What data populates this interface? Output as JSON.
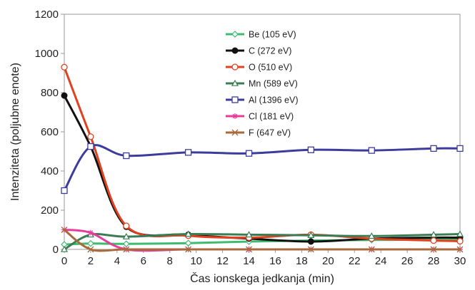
{
  "chart_data": {
    "type": "line",
    "xlabel": "Čas ionskega jedkanja  (min)",
    "ylabel": "Intenziteta  (poljubne  enote)",
    "xlim": [
      0,
      30
    ],
    "ylim": [
      0,
      1200
    ],
    "xticks": [
      "0",
      "2",
      "4",
      "6",
      "8",
      "10",
      "12",
      "14",
      "16",
      "18",
      "20",
      "22",
      "24",
      "26",
      "28",
      "30"
    ],
    "yticks": [
      "0",
      "200",
      "400",
      "600",
      "800",
      "1000",
      "1200"
    ],
    "grid": false,
    "legend_position": "top-center",
    "series": [
      {
        "name": "Be (105 eV)",
        "color": "#3dbb6e",
        "marker": "diamond",
        "x": [
          0,
          2,
          4.7,
          9.4,
          14,
          18.7,
          23.3,
          28,
          30
        ],
        "y": [
          25,
          30,
          28,
          32,
          40,
          45,
          48,
          50,
          50
        ]
      },
      {
        "name": "C (272 eV)",
        "color": "#111111",
        "marker": "filled-circle",
        "x": [
          0,
          2,
          4.7,
          9.4,
          14,
          18.7,
          23.3,
          28,
          30
        ],
        "y": [
          785,
          525,
          115,
          75,
          55,
          40,
          55,
          60,
          60
        ]
      },
      {
        "name": "O (510 eV)",
        "color": "#e2401f",
        "marker": "open-circle",
        "x": [
          0,
          2,
          4.7,
          9.4,
          14,
          18.7,
          23.3,
          28,
          30
        ],
        "y": [
          930,
          575,
          120,
          70,
          60,
          75,
          55,
          45,
          42
        ]
      },
      {
        "name": "Mn (589 eV)",
        "color": "#3a7d55",
        "marker": "triangle",
        "x": [
          0,
          2,
          4.7,
          9.4,
          14,
          18.7,
          23.3,
          28,
          30
        ],
        "y": [
          0,
          75,
          65,
          78,
          75,
          72,
          68,
          75,
          78
        ]
      },
      {
        "name": "Al (1396 eV)",
        "color": "#3c3c9c",
        "marker": "open-square",
        "x": [
          0,
          2,
          4.7,
          9.4,
          14,
          18.7,
          23.3,
          28,
          30
        ],
        "y": [
          300,
          525,
          478,
          495,
          490,
          508,
          505,
          515,
          515
        ]
      },
      {
        "name": "Cl (181 eV)",
        "color": "#e83a9a",
        "marker": "star",
        "x": [
          0,
          2,
          4.7,
          9.4,
          14,
          18.7,
          23.3,
          28,
          30
        ],
        "y": [
          100,
          85,
          0,
          0,
          0,
          0,
          0,
          0,
          0
        ]
      },
      {
        "name": "F (647 eV)",
        "color": "#a86a3c",
        "marker": "cross",
        "x": [
          0,
          2,
          4.7,
          9.4,
          14,
          18.7,
          23.3,
          28,
          30
        ],
        "y": [
          100,
          0,
          0,
          0,
          0,
          0,
          0,
          0,
          0
        ]
      }
    ]
  }
}
